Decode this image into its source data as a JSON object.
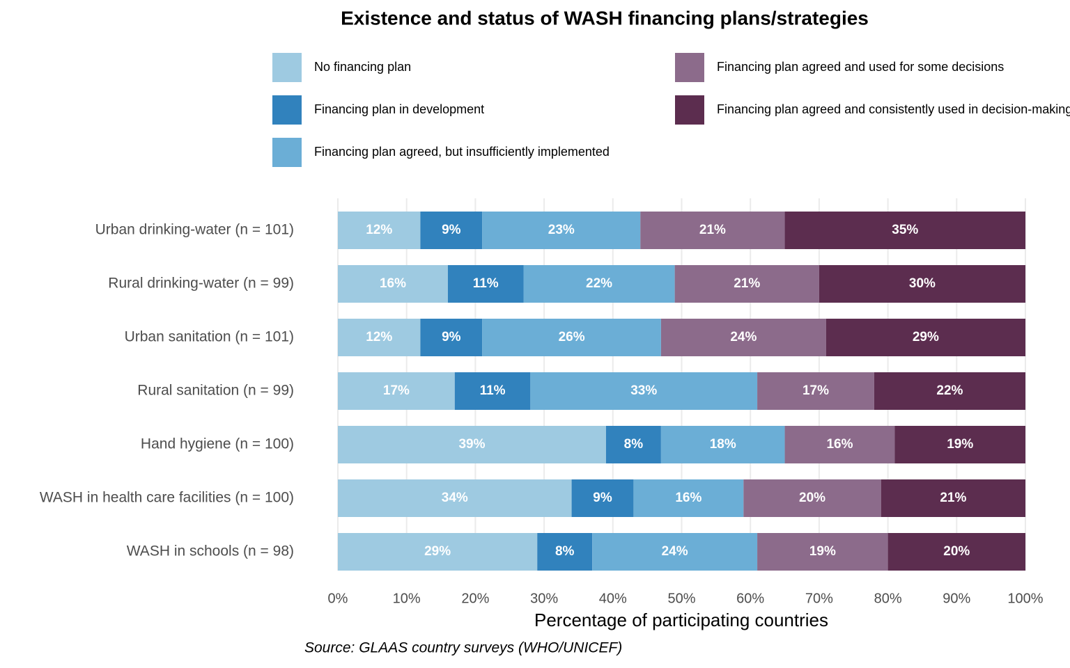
{
  "chart_data": {
    "type": "stacked_bar_horizontal",
    "title": "Existence and status of WASH financing plans/strategies",
    "x_label": "Percentage of participating countries",
    "caption": "Source: GLAAS country surveys (WHO/UNICEF)",
    "categories": [
      "Urban drinking-water (n = 101)",
      "Rural drinking-water (n = 99)",
      "Urban sanitation (n = 101)",
      "Rural sanitation (n = 99)",
      "Hand hygiene (n = 100)",
      "WASH in health care facilities (n = 100)",
      "WASH in schools (n = 98)"
    ],
    "series": [
      {
        "name": "No financing plan",
        "color": "#9ecae1",
        "values": [
          12,
          16,
          12,
          17,
          39,
          34,
          29
        ],
        "value_labels": [
          "12%",
          "16%",
          "12%",
          "17%",
          "39%",
          "34%",
          "29%"
        ]
      },
      {
        "name": "Financing plan in development",
        "color": "#3182bd",
        "values": [
          9,
          11,
          9,
          11,
          8,
          9,
          8
        ],
        "value_labels": [
          "9%",
          "11%",
          "9%",
          "11%",
          "8%",
          "9%",
          "8%"
        ]
      },
      {
        "name": "Financing plan agreed, but insufficiently implemented",
        "color": "#6baed6",
        "values": [
          23,
          22,
          26,
          33,
          18,
          16,
          24
        ],
        "value_labels": [
          "23%",
          "22%",
          "26%",
          "33%",
          "18%",
          "16%",
          "24%"
        ]
      },
      {
        "name": "Financing plan agreed and used for some decisions",
        "color": "#8c6b8b",
        "values": [
          21,
          21,
          24,
          17,
          16,
          20,
          19
        ],
        "value_labels": [
          "21%",
          "21%",
          "24%",
          "17%",
          "16%",
          "20%",
          "19%"
        ]
      },
      {
        "name": "Financing plan agreed and consistently used in decision-making",
        "color": "#5c2d4f",
        "values": [
          35,
          30,
          29,
          22,
          19,
          21,
          20
        ],
        "value_labels": [
          "35%",
          "30%",
          "29%",
          "22%",
          "19%",
          "21%",
          "20%"
        ]
      }
    ],
    "xlim": [
      0,
      100
    ],
    "xticks": [
      {
        "value": 0,
        "label": "0%"
      },
      {
        "value": 10,
        "label": "10%"
      },
      {
        "value": 20,
        "label": "20%"
      },
      {
        "value": 30,
        "label": "30%"
      },
      {
        "value": 40,
        "label": "40%"
      },
      {
        "value": 50,
        "label": "50%"
      },
      {
        "value": 60,
        "label": "60%"
      },
      {
        "value": 70,
        "label": "70%"
      },
      {
        "value": 80,
        "label": "80%"
      },
      {
        "value": 90,
        "label": "90%"
      },
      {
        "value": 100,
        "label": "100%"
      }
    ],
    "grid": true,
    "legend_position": "top"
  }
}
